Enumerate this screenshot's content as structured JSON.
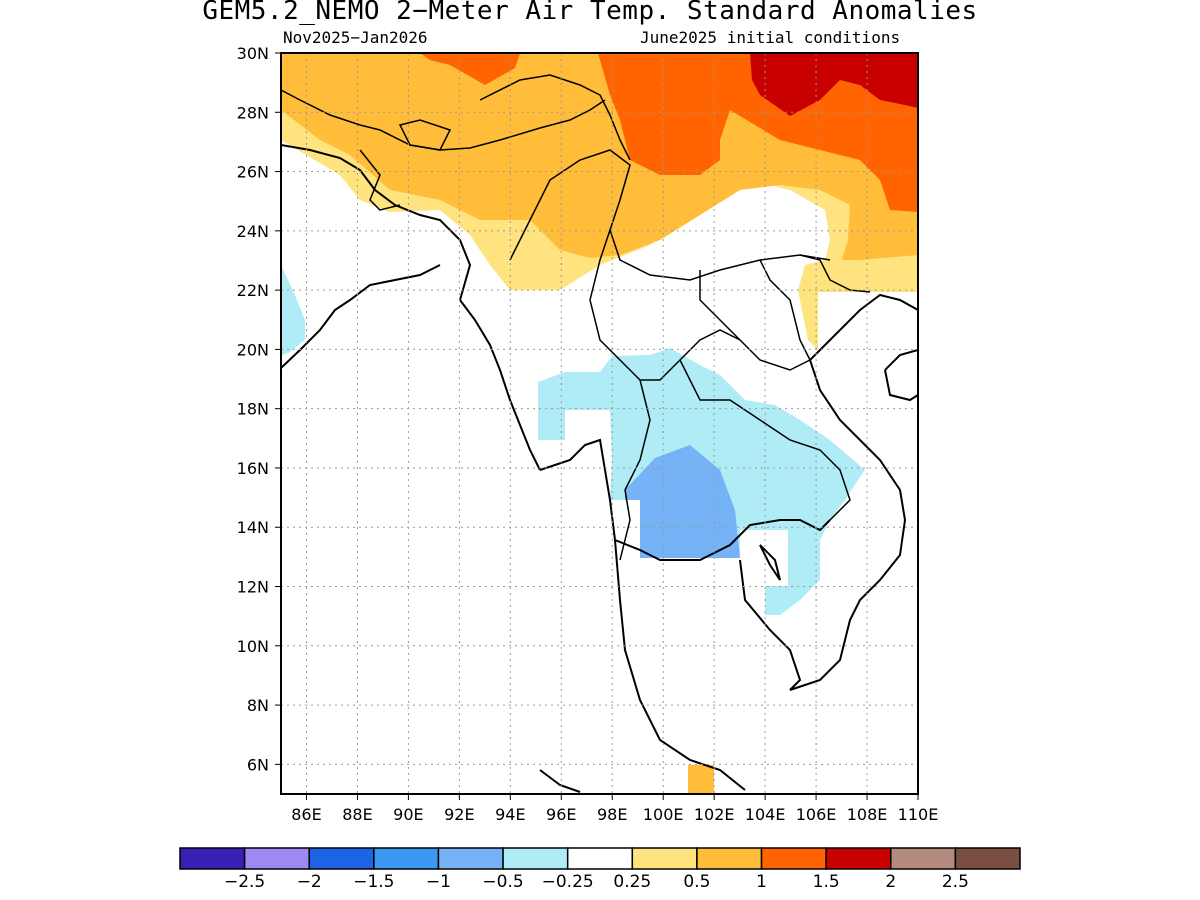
{
  "title": "GEM5.2_NEMO 2−Meter Air Temp. Standard Anomalies",
  "period": "Nov2025−Jan2026",
  "init": "June2025 initial conditions",
  "map": {
    "lon_range": [
      85,
      110
    ],
    "lat_range": [
      5,
      30
    ],
    "grid": true,
    "x_ticks": [
      "86E",
      "88E",
      "90E",
      "92E",
      "94E",
      "96E",
      "98E",
      "100E",
      "102E",
      "104E",
      "106E",
      "108E",
      "110E"
    ],
    "y_ticks": [
      "6N",
      "8N",
      "10N",
      "12N",
      "14N",
      "16N",
      "18N",
      "20N",
      "22N",
      "24N",
      "26N",
      "28N",
      "30N"
    ]
  },
  "legend": {
    "colors": [
      "#3a1fb4",
      "#9d88f4",
      "#1d63e6",
      "#3b98f2",
      "#76b3f6",
      "#b0ecf6",
      "#ffffff",
      "#ffe37e",
      "#ffbd3a",
      "#ff6400",
      "#c80000",
      "#b58a7e",
      "#7a4e43"
    ],
    "labels": [
      "−2.5",
      "−2",
      "−1.5",
      "−1",
      "−0.5",
      "−0.25",
      "0.25",
      "0.5",
      "1",
      "1.5",
      "2",
      "2.5"
    ]
  }
}
